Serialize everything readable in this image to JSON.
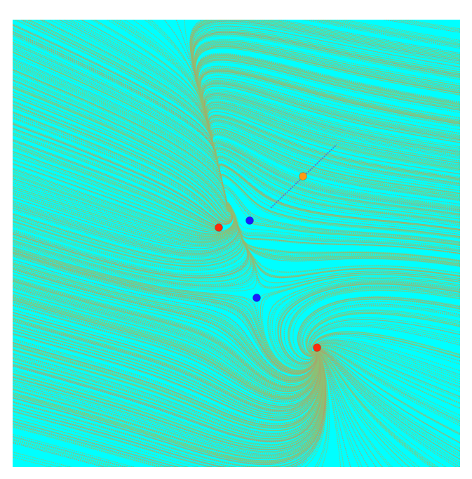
{
  "visualization": {
    "background_color": "#00ffff",
    "streamline_color": "#8fbf72",
    "streamline_highlight_color": "#b39c6a",
    "seed_line_color": "#5a6fd0",
    "critical_points": [
      {
        "kind": "source",
        "color": "#ff2a0a"
      },
      {
        "kind": "saddle",
        "color": "#1a1aff"
      },
      {
        "kind": "saddle",
        "color": "#1a1aff"
      },
      {
        "kind": "source",
        "color": "#ff2a0a"
      },
      {
        "kind": "selected",
        "color": "#ff9a14"
      }
    ]
  }
}
